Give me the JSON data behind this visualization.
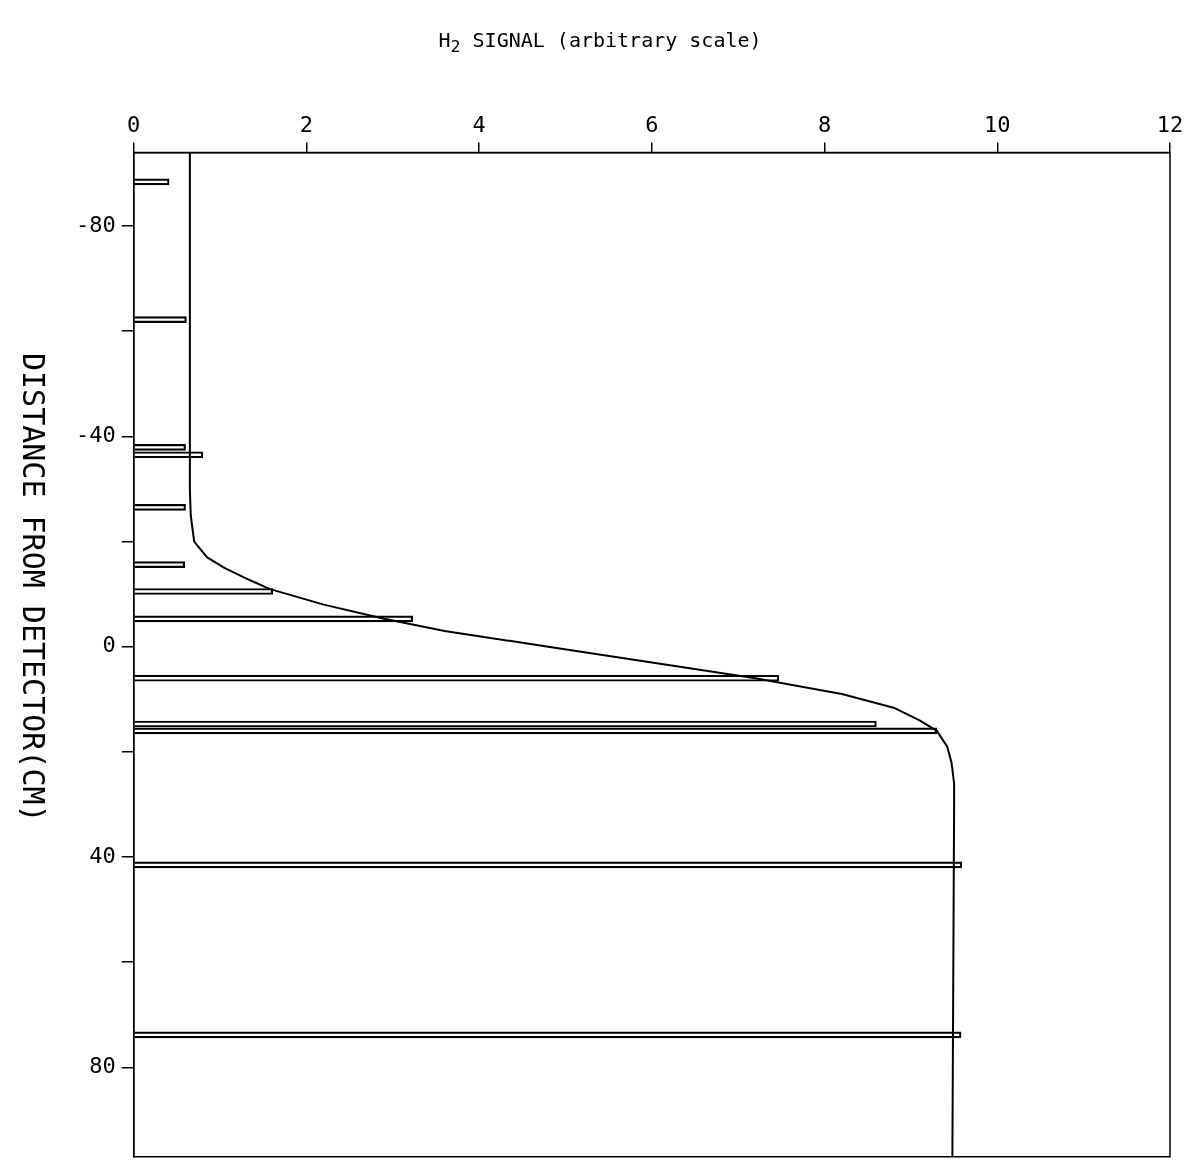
{
  "chart_data": {
    "type": "bar",
    "orientation": "horizontal",
    "xlabel": "H$_{2}$ SIGNAL (arbitrary scale)",
    "ylabel": "DISTANCE FROM DETECTOR(CM)",
    "xlim": [
      0,
      12
    ],
    "xticks": [
      0,
      2,
      4,
      6,
      8,
      10,
      12
    ],
    "ylim": [
      97,
      -94
    ],
    "yticks": [
      -80,
      {
        "value": -60,
        "label": null
      },
      -40,
      {
        "value": -20,
        "label": null
      },
      0,
      {
        "value": 20,
        "label": null
      },
      40,
      {
        "value": 60,
        "label": null
      },
      80
    ],
    "legend": false,
    "grid": false,
    "series": [
      {
        "color": "#000000",
        "x": [
          -88.4,
          -62.2,
          -37.9,
          -36.5,
          -26.5,
          -15.6,
          -10.5,
          -5.3,
          6,
          14.7,
          16,
          41.5,
          73.8
        ],
        "values": [
          0.41,
          0.61,
          0.6,
          0.8,
          0.6,
          0.59,
          1.61,
          3.23,
          7.47,
          8.6,
          9.3,
          9.59,
          9.58
        ]
      },
      {
        "type": "line",
        "color": "#000000",
        "marker": "none",
        "line_style": "solid",
        "x": [
          -94,
          -40,
          -30,
          -25,
          -20,
          -17,
          -15,
          -13,
          -11,
          -8,
          -5.3,
          -3,
          0,
          3,
          6,
          9,
          11.6,
          14,
          16,
          19,
          22,
          26,
          30,
          97
        ],
        "values": [
          0.65,
          0.65,
          0.65,
          0.66,
          0.7,
          0.85,
          1.05,
          1.3,
          1.57,
          2.2,
          2.9,
          3.6,
          4.8,
          6.0,
          7.2,
          8.2,
          8.8,
          9.1,
          9.3,
          9.42,
          9.47,
          9.5,
          9.5,
          9.48
        ]
      }
    ]
  }
}
